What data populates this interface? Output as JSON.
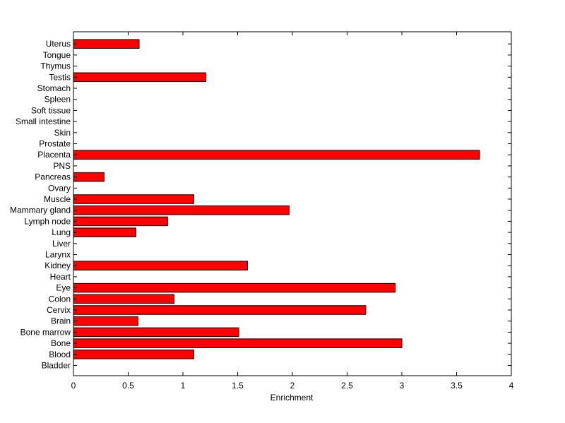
{
  "chart_data": {
    "type": "bar",
    "orientation": "horizontal",
    "title": "",
    "xlabel": "Enrichment",
    "ylabel": "",
    "xlim": [
      0,
      4
    ],
    "xticks": [
      "0",
      "0.5",
      "1",
      "1.5",
      "2",
      "2.5",
      "3",
      "3.5",
      "4"
    ],
    "xtick_values": [
      0,
      0.5,
      1,
      1.5,
      2,
      2.5,
      3,
      3.5,
      4
    ],
    "grid": false,
    "bar_color": "#ff0000",
    "bar_edge_color": "#000000",
    "categories": [
      "Bladder",
      "Blood",
      "Bone",
      "Bone marrow",
      "Brain",
      "Cervix",
      "Colon",
      "Eye",
      "Heart",
      "Kidney",
      "Larynx",
      "Liver",
      "Lung",
      "Lymph node",
      "Mammary gland",
      "Muscle",
      "Ovary",
      "Pancreas",
      "PNS",
      "Placenta",
      "Prostate",
      "Skin",
      "Small intestine",
      "Soft tissue",
      "Spleen",
      "Stomach",
      "Testis",
      "Thymus",
      "Tongue",
      "Uterus"
    ],
    "values": [
      0,
      1.1,
      3.0,
      1.51,
      0.59,
      2.67,
      0.92,
      2.94,
      0,
      1.59,
      0,
      0,
      0.57,
      0.86,
      1.97,
      1.1,
      0,
      0.28,
      0,
      3.71,
      0,
      0,
      0,
      0,
      0,
      0,
      1.21,
      0,
      0,
      0.6
    ]
  }
}
